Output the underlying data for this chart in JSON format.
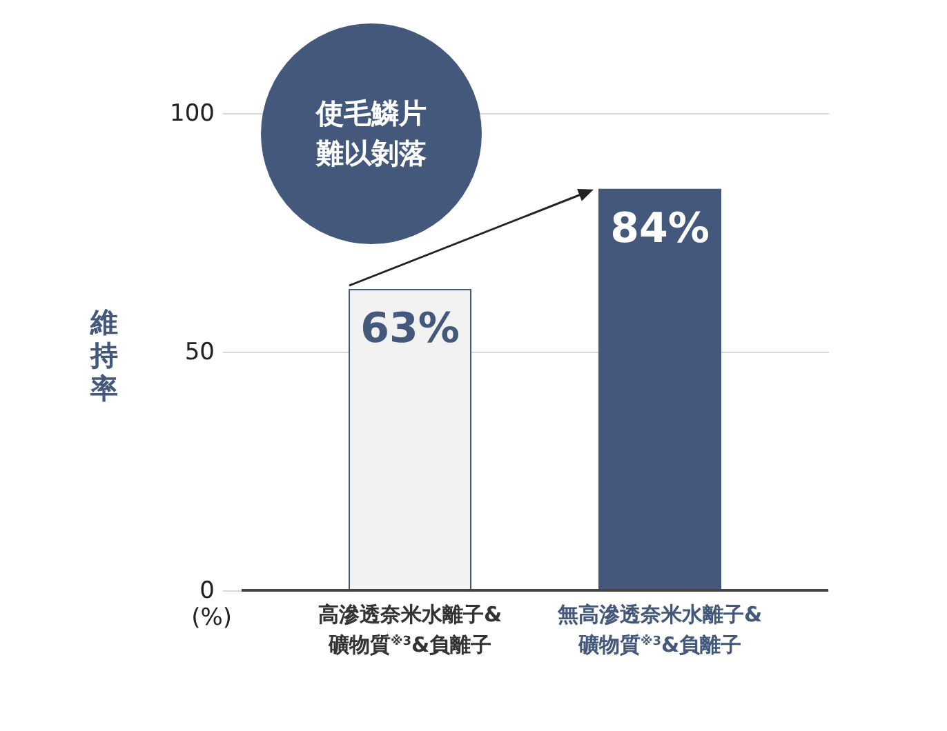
{
  "chart_data": {
    "type": "bar",
    "categories": [
      "高滲透奈米水離子&礦物質$^{※3}$&負離子",
      "無高滲透奈米水離子&礦物質$^{※3}$&負離子"
    ],
    "values": [
      63,
      84
    ],
    "colors": [
      "#f2f2f2",
      "#44587c"
    ],
    "value_labels": [
      "63%",
      "84%"
    ],
    "ylabel": "維持率",
    "ylim": [
      0,
      100
    ],
    "yticks": [
      0,
      50,
      100
    ],
    "grid": "y",
    "annotations": [
      "使毛鱗片難以剝落",
      "(%)"
    ]
  }
}
